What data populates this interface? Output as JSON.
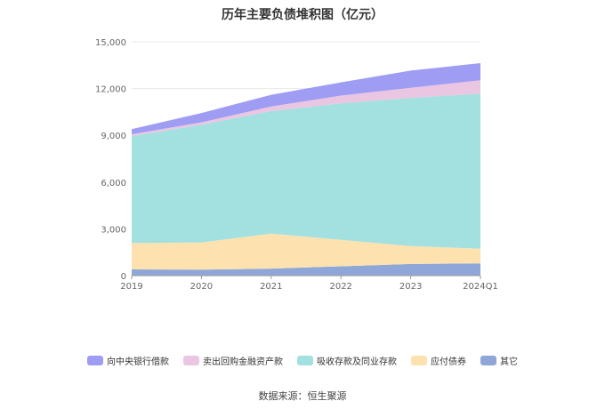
{
  "chart_data": {
    "type": "area",
    "stacked": true,
    "title": "历年主要负债堆积图（亿元）",
    "categories": [
      "2019",
      "2020",
      "2021",
      "2022",
      "2023",
      "2024Q1"
    ],
    "yticks": [
      "0",
      "3,000",
      "6,000",
      "9,000",
      "12,000",
      "15,000"
    ],
    "ylim": [
      0,
      15000
    ],
    "grid": true,
    "legend_position": "bottom",
    "series": [
      {
        "name": "其它",
        "color": "#8fa7d8",
        "values": [
          400,
          380,
          450,
          600,
          750,
          780
        ]
      },
      {
        "name": "应付债券",
        "color": "#fde2b0",
        "values": [
          1700,
          1750,
          2250,
          1700,
          1150,
          950
        ]
      },
      {
        "name": "吸收存款及同业存款",
        "color": "#a3e0e0",
        "values": [
          6850,
          7550,
          7850,
          8750,
          9500,
          9950
        ]
      },
      {
        "name": "卖出回购金融资产款",
        "color": "#eac6e2",
        "values": [
          120,
          150,
          300,
          500,
          650,
          850
        ]
      },
      {
        "name": "向中央银行借款",
        "color": "#9e9df3",
        "values": [
          330,
          600,
          750,
          850,
          1100,
          1100
        ]
      }
    ],
    "source": "数据来源：恒生聚源"
  },
  "legend_order": [
    4,
    3,
    2,
    1,
    0
  ],
  "colors": {
    "axis": "#999999",
    "grid": "#e8e8e8",
    "tick_text": "#666666"
  }
}
